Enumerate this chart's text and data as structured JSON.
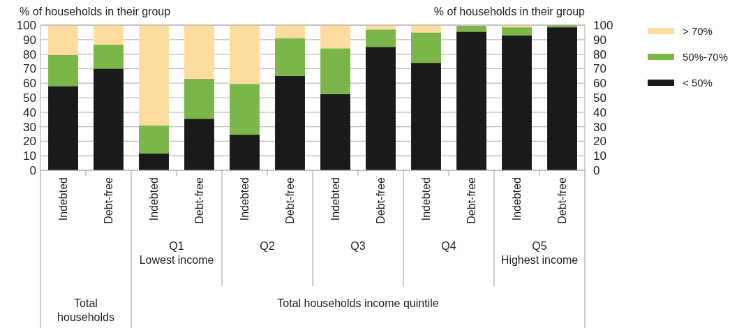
{
  "chart_data": {
    "type": "bar",
    "stacked": true,
    "ylabel": "% of households in their group",
    "y2label": "% of households in their group",
    "categories": [
      "Indebted",
      "Debt-free",
      "Indebted",
      "Debt-free",
      "Indebted",
      "Debt-free",
      "Indebted",
      "Debt-free",
      "Indebted",
      "Debt-free",
      "Indebted",
      "Debt-free"
    ],
    "series": [
      {
        "name": "< 50%",
        "color": "#1a1a1a",
        "values": [
          58,
          70,
          11.5,
          35.5,
          24.5,
          65,
          52.5,
          85,
          74,
          95.5,
          93,
          98.5
        ]
      },
      {
        "name": "50%-70%",
        "color": "#7ab648",
        "values": [
          21.5,
          16.5,
          19.5,
          27.5,
          35,
          26,
          31.5,
          12,
          21,
          4,
          5.5,
          1.5
        ]
      },
      {
        "name": "> 70%",
        "color": "#fedb9f",
        "values": [
          20.5,
          13.5,
          69,
          37,
          40.5,
          9,
          16,
          3,
          5,
          null,
          1.5,
          0
        ]
      }
    ],
    "ylim": [
      0,
      100
    ],
    "yticks": [
      0,
      10,
      20,
      30,
      40,
      50,
      60,
      70,
      80,
      90,
      100
    ],
    "y2lim": [
      0,
      100
    ],
    "y2ticks": [
      0,
      10,
      20,
      30,
      40,
      50,
      60,
      70,
      80,
      90,
      100
    ],
    "grid": "y",
    "legend": "top right",
    "annotations": [
      "Q1\nLowest income",
      "Q2",
      "Q3",
      "Q4",
      "Q5\nHighest income",
      "Total\nhouseholds",
      "Total households income quintile"
    ]
  }
}
